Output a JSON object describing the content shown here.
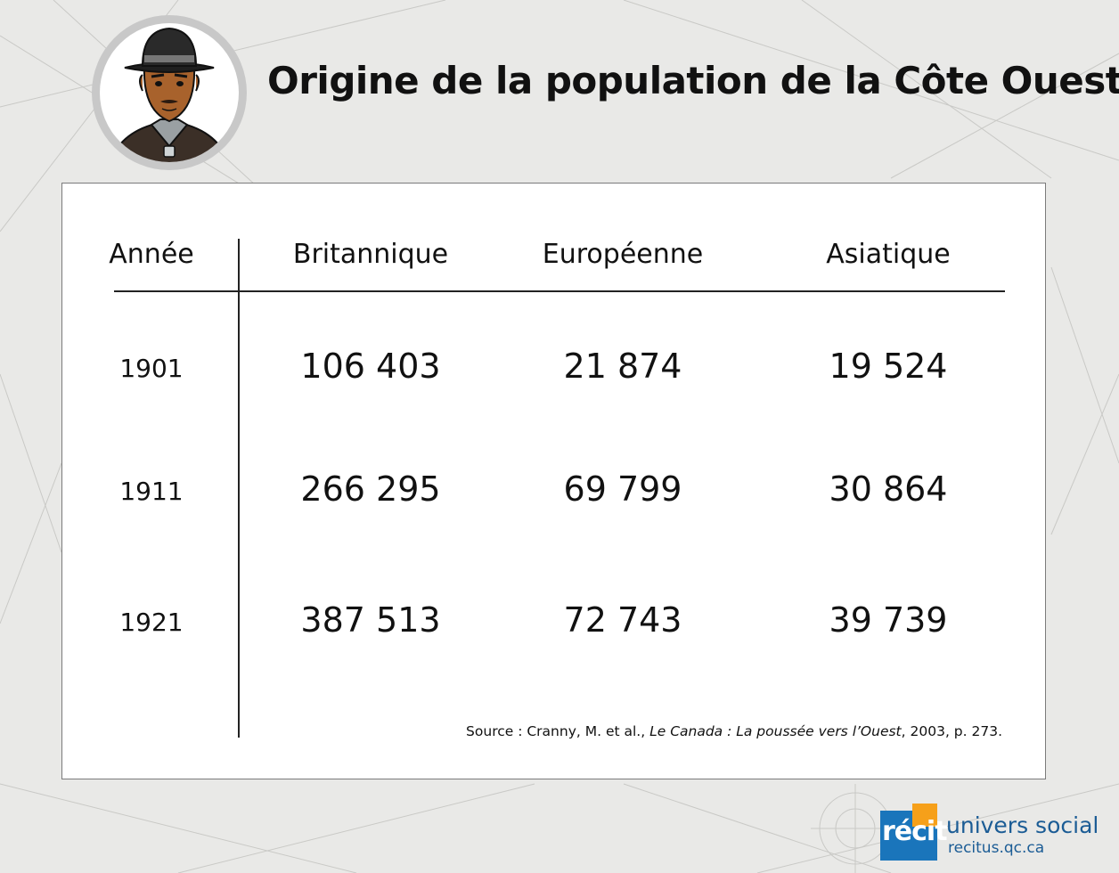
{
  "title": "Origine de la population de la Côte Ouest",
  "chart_data": {
    "type": "table",
    "headers": [
      "Année",
      "Britannique",
      "Européenne",
      "Asiatique"
    ],
    "rows": [
      {
        "year": "1901",
        "values": [
          "106 403",
          "21 874",
          "19 524"
        ]
      },
      {
        "year": "1911",
        "values": [
          "266 295",
          "69 799",
          "30 864"
        ]
      },
      {
        "year": "1921",
        "values": [
          "387 513",
          "72 743",
          "39 739"
        ]
      }
    ]
  },
  "source": {
    "prefix": "Source : Cranny, M. et al., ",
    "book_title": "Le Canada : La poussée vers l’Ouest",
    "suffix": ", 2003, p. 273."
  },
  "logo": {
    "mark": "récit",
    "name": "univers social",
    "url": "recitus.qc.ca"
  },
  "colors": {
    "background": "#e9e9e7",
    "panel": "#ffffff",
    "brand_blue": "#1a75bb",
    "brand_orange": "#f6a01a"
  },
  "icons": {
    "avatar": "man-with-hat-portrait"
  }
}
